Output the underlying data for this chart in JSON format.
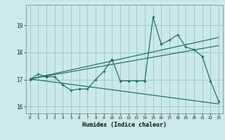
{
  "title": "",
  "xlabel": "Humidex (Indice chaleur)",
  "bg_color": "#cce8ec",
  "grid_color": "#9fc8cc",
  "line_color": "#1a6b6b",
  "xlim": [
    -0.5,
    23.5
  ],
  "ylim": [
    15.75,
    19.75
  ],
  "yticks": [
    16,
    17,
    18,
    19
  ],
  "xticks": [
    0,
    1,
    2,
    3,
    4,
    5,
    6,
    7,
    8,
    9,
    10,
    11,
    12,
    13,
    14,
    15,
    16,
    17,
    18,
    19,
    20,
    21,
    22,
    23
  ],
  "main_y": [
    17.0,
    17.2,
    17.1,
    17.1,
    16.8,
    16.6,
    16.65,
    16.65,
    17.0,
    17.3,
    17.75,
    16.95,
    16.95,
    16.95,
    16.95,
    19.3,
    18.3,
    18.45,
    18.65,
    18.2,
    18.1,
    17.85,
    16.95,
    16.2
  ],
  "line1_start_x": 0,
  "line1_start_y": 17.02,
  "line1_end_x": 23,
  "line1_end_y": 18.55,
  "line2_start_x": 0,
  "line2_start_y": 17.02,
  "line2_end_x": 23,
  "line2_end_y": 18.25,
  "line3_start_x": 0,
  "line3_start_y": 17.02,
  "line3_end_x": 23,
  "line3_end_y": 16.1
}
